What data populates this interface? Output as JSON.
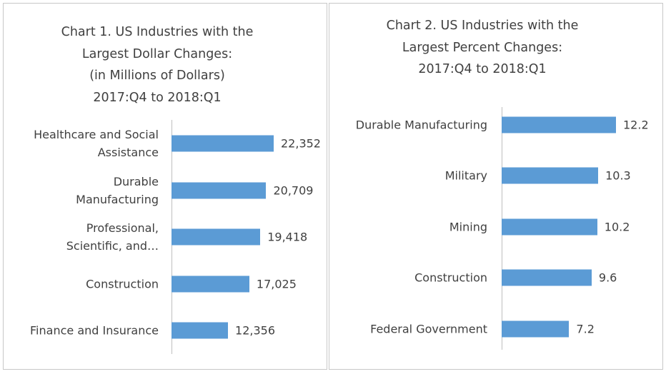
{
  "chart_data": [
    {
      "type": "bar",
      "orientation": "horizontal",
      "title": "Chart 1. US Industries with the\nLargest Dollar Changes:\n(in Millions of Dollars)\n2017:Q4 to 2018:Q1",
      "categories": [
        "Healthcare and Social\nAssistance",
        "Durable\nManufacturing",
        "Professional,\nScientific, and…",
        "Construction",
        "Finance and Insurance"
      ],
      "values": [
        22352,
        20709,
        19418,
        17025,
        12356
      ],
      "value_labels": [
        "22,352",
        "20,709",
        "19,418",
        "17,025",
        "12,356"
      ],
      "color": "#5b9bd5"
    },
    {
      "type": "bar",
      "orientation": "horizontal",
      "title": "Chart 2. US Industries with the\nLargest Percent Changes:\n2017:Q4 to 2018:Q1",
      "categories": [
        "Durable Manufacturing",
        "Military",
        "Mining",
        "Construction",
        "Federal Government"
      ],
      "values": [
        12.2,
        10.3,
        10.2,
        9.6,
        7.2
      ],
      "color": "#5b9bd5"
    }
  ]
}
